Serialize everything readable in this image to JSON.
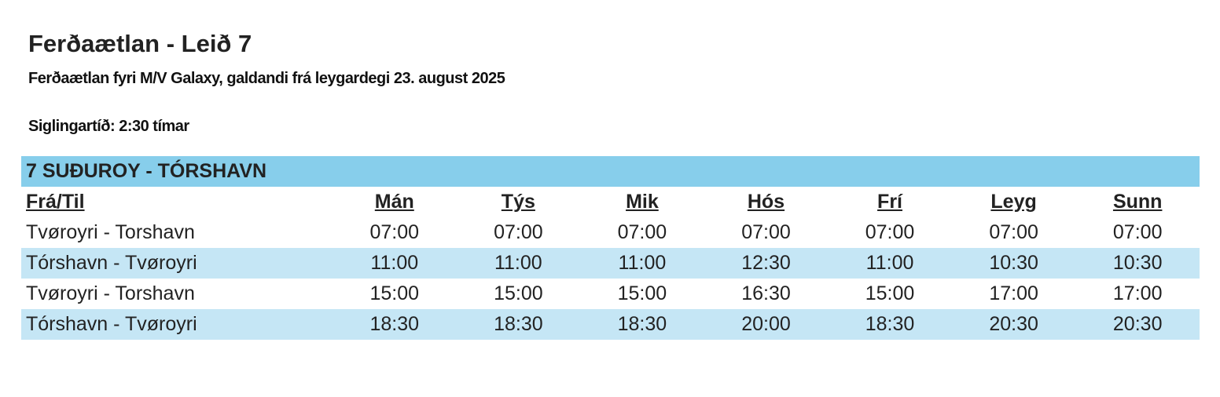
{
  "header": {
    "title": "Ferðaætlan - Leið 7",
    "subtitle": "Ferðaætlan fyri M/V Galaxy, galdandi frá leygardegi 23. august 2025",
    "duration": "Siglingartíð: 2:30 tímar"
  },
  "table": {
    "route": "7 SUÐUROY - TÓRSHAVN",
    "columns": [
      "Frá/Til",
      "Mán",
      "Týs",
      "Mik",
      "Hós",
      "Frí",
      "Leyg",
      "Sunn"
    ],
    "rows": [
      [
        "Tvøroyri - Torshavn",
        "07:00",
        "07:00",
        "07:00",
        "07:00",
        "07:00",
        "07:00",
        "07:00"
      ],
      [
        "Tórshavn - Tvøroyri",
        "11:00",
        "11:00",
        "11:00",
        "12:30",
        "11:00",
        "10:30",
        "10:30"
      ],
      [
        "Tvøroyri - Torshavn",
        "15:00",
        "15:00",
        "15:00",
        "16:30",
        "15:00",
        "17:00",
        "17:00"
      ],
      [
        "Tórshavn - Tvøroyri",
        "18:30",
        "18:30",
        "18:30",
        "20:00",
        "18:30",
        "20:30",
        "20:30"
      ]
    ]
  }
}
